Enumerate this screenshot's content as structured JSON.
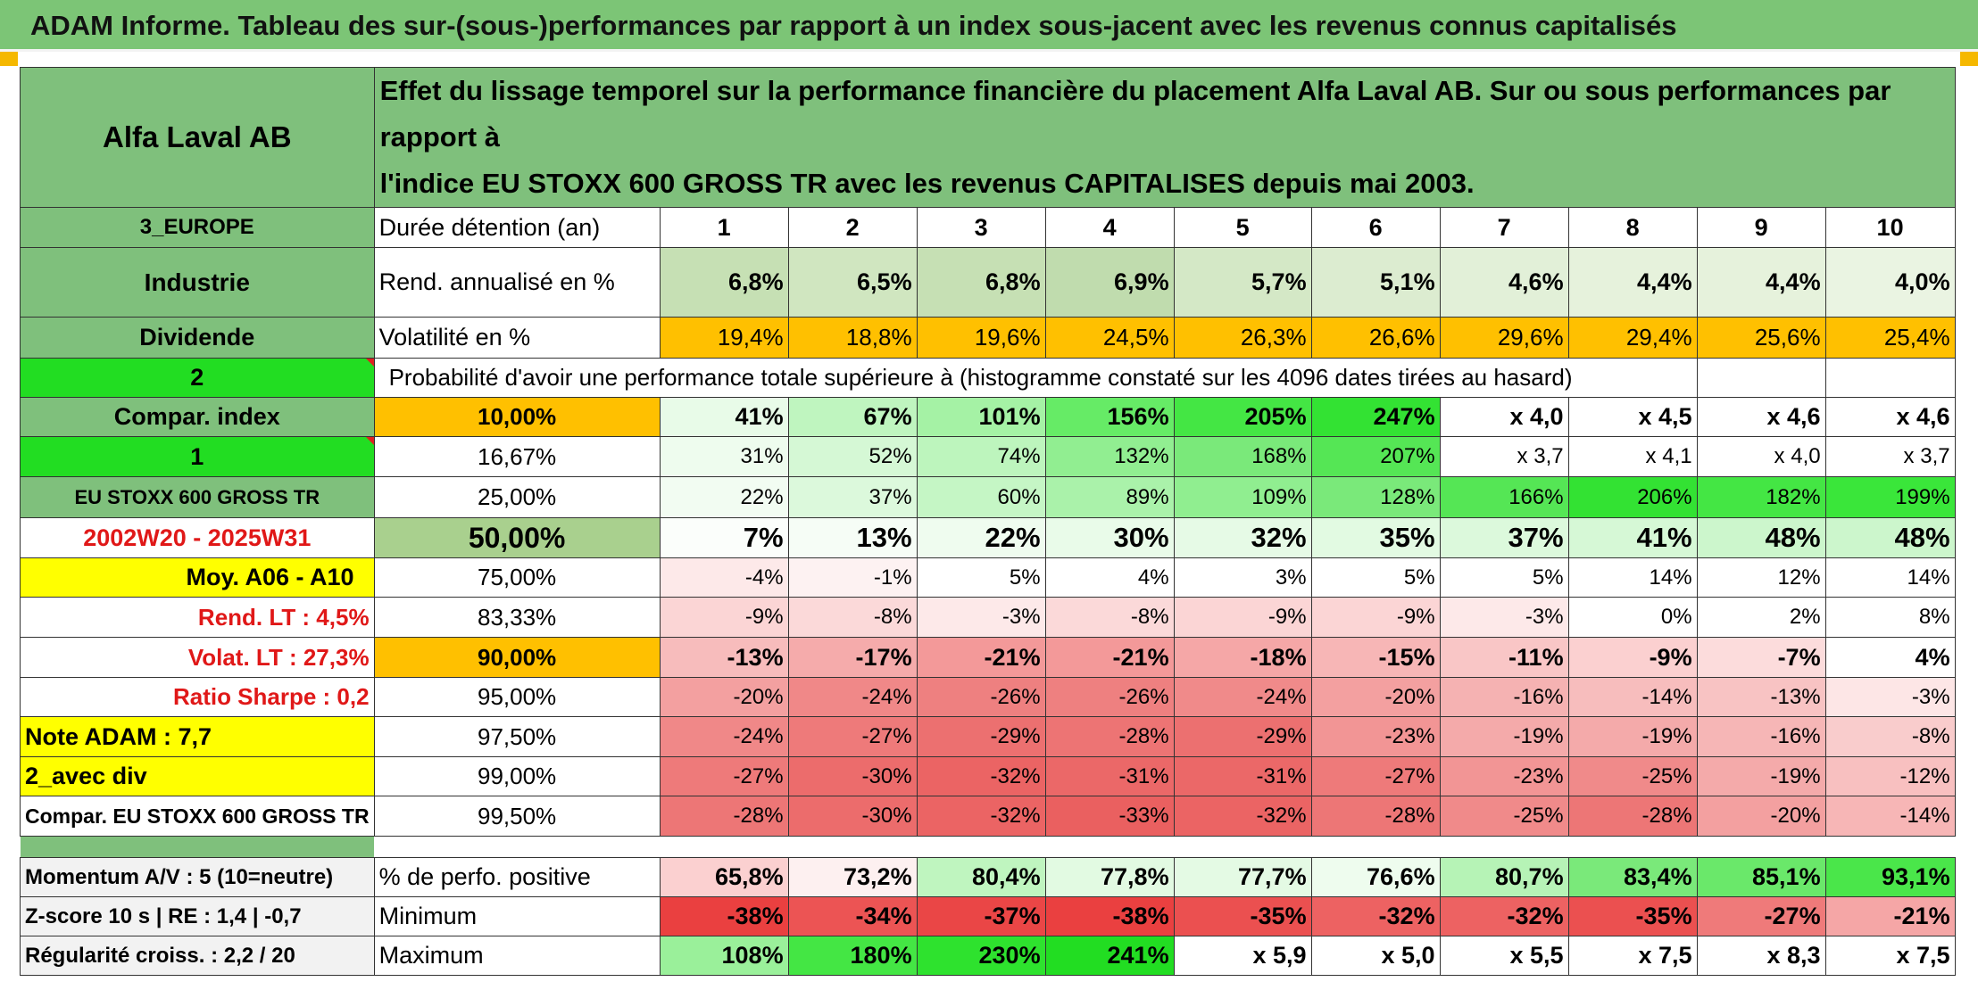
{
  "title": "ADAM Informe. Tableau des sur-(sous-)performances par rapport à un index sous-jacent avec les revenus connus capitalisés",
  "header": {
    "company": "Alfa Laval AB",
    "description_line1": "Effet du lissage temporel sur la performance financière du placement Alfa Laval AB. Sur ou sous performances par rapport à",
    "description_line2": "l'indice EU STOXX 600 GROSS TR avec les revenus CAPITALISES depuis mai 2003."
  },
  "years": [
    "1",
    "2",
    "3",
    "4",
    "5",
    "6",
    "7",
    "8",
    "9",
    "10"
  ],
  "rows": {
    "region": "3_EUROPE",
    "holding_label": "Durée détention (an)",
    "sector": "Industrie",
    "return_label": "Rend. annualisé en %",
    "returns": [
      "6,8%",
      "6,5%",
      "6,8%",
      "6,9%",
      "5,7%",
      "5,1%",
      "4,6%",
      "4,4%",
      "4,4%",
      "4,0%"
    ],
    "dividend": "Dividende",
    "vol_label": "Volatilité en %",
    "vols": [
      "19,4%",
      "18,8%",
      "19,6%",
      "24,5%",
      "26,3%",
      "26,6%",
      "29,6%",
      "29,4%",
      "25,6%",
      "25,4%"
    ],
    "two": "2",
    "prob_label": "Probabilité d'avoir une performance totale supérieure à (histogramme constaté sur les 4096 dates tirées au hasard)"
  },
  "left_labels": [
    "Compar. index",
    "1",
    "EU STOXX 600 GROSS TR",
    "2002W20 - 2025W31",
    "Moy. A06 - A10",
    "Rend. LT :   4,5%",
    "Volat. LT :   27,3%",
    "Ratio Sharpe :   0,2",
    "Note ADAM : 7,7",
    "2_avec div",
    "Compar. EU STOXX 600 GROSS TR"
  ],
  "percentiles": [
    "10,00%",
    "16,67%",
    "25,00%",
    "50,00%",
    "75,00%",
    "83,33%",
    "90,00%",
    "95,00%",
    "97,50%",
    "99,00%",
    "99,50%"
  ],
  "matrix": [
    [
      "41%",
      "67%",
      "101%",
      "156%",
      "205%",
      "247%",
      "x 4,0",
      "x 4,5",
      "x 4,6",
      "x 4,6"
    ],
    [
      "31%",
      "52%",
      "74%",
      "132%",
      "168%",
      "207%",
      "x 3,7",
      "x 4,1",
      "x 4,0",
      "x 3,7"
    ],
    [
      "22%",
      "37%",
      "60%",
      "89%",
      "109%",
      "128%",
      "166%",
      "206%",
      "182%",
      "199%"
    ],
    [
      "7%",
      "13%",
      "22%",
      "30%",
      "32%",
      "35%",
      "37%",
      "41%",
      "48%",
      "48%"
    ],
    [
      "-4%",
      "-1%",
      "5%",
      "4%",
      "3%",
      "5%",
      "5%",
      "14%",
      "12%",
      "14%"
    ],
    [
      "-9%",
      "-8%",
      "-3%",
      "-8%",
      "-9%",
      "-9%",
      "-3%",
      "0%",
      "2%",
      "8%"
    ],
    [
      "-13%",
      "-17%",
      "-21%",
      "-21%",
      "-18%",
      "-15%",
      "-11%",
      "-9%",
      "-7%",
      "4%"
    ],
    [
      "-20%",
      "-24%",
      "-26%",
      "-26%",
      "-24%",
      "-20%",
      "-16%",
      "-14%",
      "-13%",
      "-3%"
    ],
    [
      "-24%",
      "-27%",
      "-29%",
      "-28%",
      "-29%",
      "-23%",
      "-19%",
      "-19%",
      "-16%",
      "-8%"
    ],
    [
      "-27%",
      "-30%",
      "-32%",
      "-31%",
      "-31%",
      "-27%",
      "-23%",
      "-25%",
      "-19%",
      "-12%"
    ],
    [
      "-28%",
      "-30%",
      "-32%",
      "-33%",
      "-32%",
      "-28%",
      "-25%",
      "-28%",
      "-20%",
      "-14%"
    ]
  ],
  "bottom": [
    {
      "left": "Momentum A/V : 5 (10=neutre)",
      "label": "% de perfo. positive",
      "values": [
        "65,8%",
        "73,2%",
        "80,4%",
        "77,8%",
        "77,7%",
        "76,6%",
        "80,7%",
        "83,4%",
        "85,1%",
        "93,1%"
      ]
    },
    {
      "left": "Z-score 10 s | RE : 1,4 | -0,7",
      "label": "Minimum",
      "values": [
        "-38%",
        "-34%",
        "-37%",
        "-38%",
        "-35%",
        "-32%",
        "-32%",
        "-35%",
        "-27%",
        "-21%"
      ]
    },
    {
      "left": "Régularité croiss. : 2,2 / 20",
      "label": "Maximum",
      "values": [
        "108%",
        "180%",
        "230%",
        "241%",
        "x 5,9",
        "x 5,0",
        "x 5,5",
        "x 7,5",
        "x 8,3",
        "x 7,5"
      ]
    }
  ],
  "colors": {
    "title_bg": "#7cc576",
    "header_green": "#7fc07c",
    "bright_green": "#22dd22",
    "yellow": "#ffff00",
    "orange": "#ffc000",
    "red_text": "#e01818",
    "matrix_bg": [
      [
        "#e8fbe8",
        "#bff5bf",
        "#a5f2a5",
        "#66eb66",
        "#44e644",
        "#33e233",
        "#ffffff",
        "#ffffff",
        "#ffffff",
        "#ffffff"
      ],
      [
        "#eefcee",
        "#d5f8d5",
        "#bdf5bd",
        "#91ee91",
        "#7ae97a",
        "#55e655",
        "#ffffff",
        "#ffffff",
        "#ffffff",
        "#ffffff"
      ],
      [
        "#f2fcf2",
        "#dcf9dc",
        "#c5f6c5",
        "#aaf2aa",
        "#90ee90",
        "#7ae97a",
        "#55e655",
        "#33e233",
        "#44e644",
        "#3ae63a"
      ],
      [
        "#fbfefb",
        "#f6fdf6",
        "#effcef",
        "#e9fbe9",
        "#e6fae6",
        "#e2fae2",
        "#dcf9dc",
        "#d6f8d6",
        "#ccf6cc",
        "#ccf6cc"
      ],
      [
        "#fde9e9",
        "#fdf2f2",
        "#ffffff",
        "#ffffff",
        "#ffffff",
        "#ffffff",
        "#ffffff",
        "#ffffff",
        "#ffffff",
        "#ffffff"
      ],
      [
        "#fbd5d5",
        "#fbd9d9",
        "#fde9e9",
        "#fbd9d9",
        "#fbd5d5",
        "#fbd5d5",
        "#fde9e9",
        "#ffffff",
        "#ffffff",
        "#ffffff"
      ],
      [
        "#f7bcbc",
        "#f5abab",
        "#f39999",
        "#f39999",
        "#f5a7a7",
        "#f7b6b6",
        "#f9c6c6",
        "#fbd0d0",
        "#fcdcdc",
        "#ffffff"
      ],
      [
        "#f3a0a0",
        "#f08888",
        "#ee8080",
        "#ee8080",
        "#f08a8a",
        "#f3a0a0",
        "#f5b2b2",
        "#f7bdbd",
        "#f8c3c3",
        "#fde6e6"
      ],
      [
        "#f08888",
        "#ee7a7a",
        "#ec7070",
        "#ed7474",
        "#ec7070",
        "#f29595",
        "#f4aaaa",
        "#f4aaaa",
        "#f6b6b6",
        "#f9cccc"
      ],
      [
        "#ee7a7a",
        "#ec6c6c",
        "#eb6464",
        "#eb6868",
        "#eb6868",
        "#ee7a7a",
        "#f29595",
        "#f08a8a",
        "#f4aaaa",
        "#f8c0c0"
      ],
      [
        "#ed7676",
        "#ec6c6c",
        "#eb6464",
        "#ea6060",
        "#eb6464",
        "#ed7676",
        "#f08a8a",
        "#ed7676",
        "#f3a0a0",
        "#f7b6b6"
      ]
    ],
    "pos_bg": [
      "#fbd0d0",
      "#fdf0f0",
      "#bff5bf",
      "#e2fae2",
      "#e4fae4",
      "#eefcee",
      "#b6f3b6",
      "#7ae97a",
      "#6ae86a",
      "#4ae64a"
    ],
    "min_bg": [
      "#ea4040",
      "#ec5454",
      "#ea4646",
      "#ea4040",
      "#eb5050",
      "#ed6262",
      "#ed6262",
      "#eb5050",
      "#ef7a7a",
      "#f5a6a6"
    ],
    "max_bg": [
      "#9af09a",
      "#44e644",
      "#2ee22e",
      "#22dd22",
      "#ffffff",
      "#ffffff",
      "#ffffff",
      "#ffffff",
      "#ffffff",
      "#ffffff"
    ]
  }
}
